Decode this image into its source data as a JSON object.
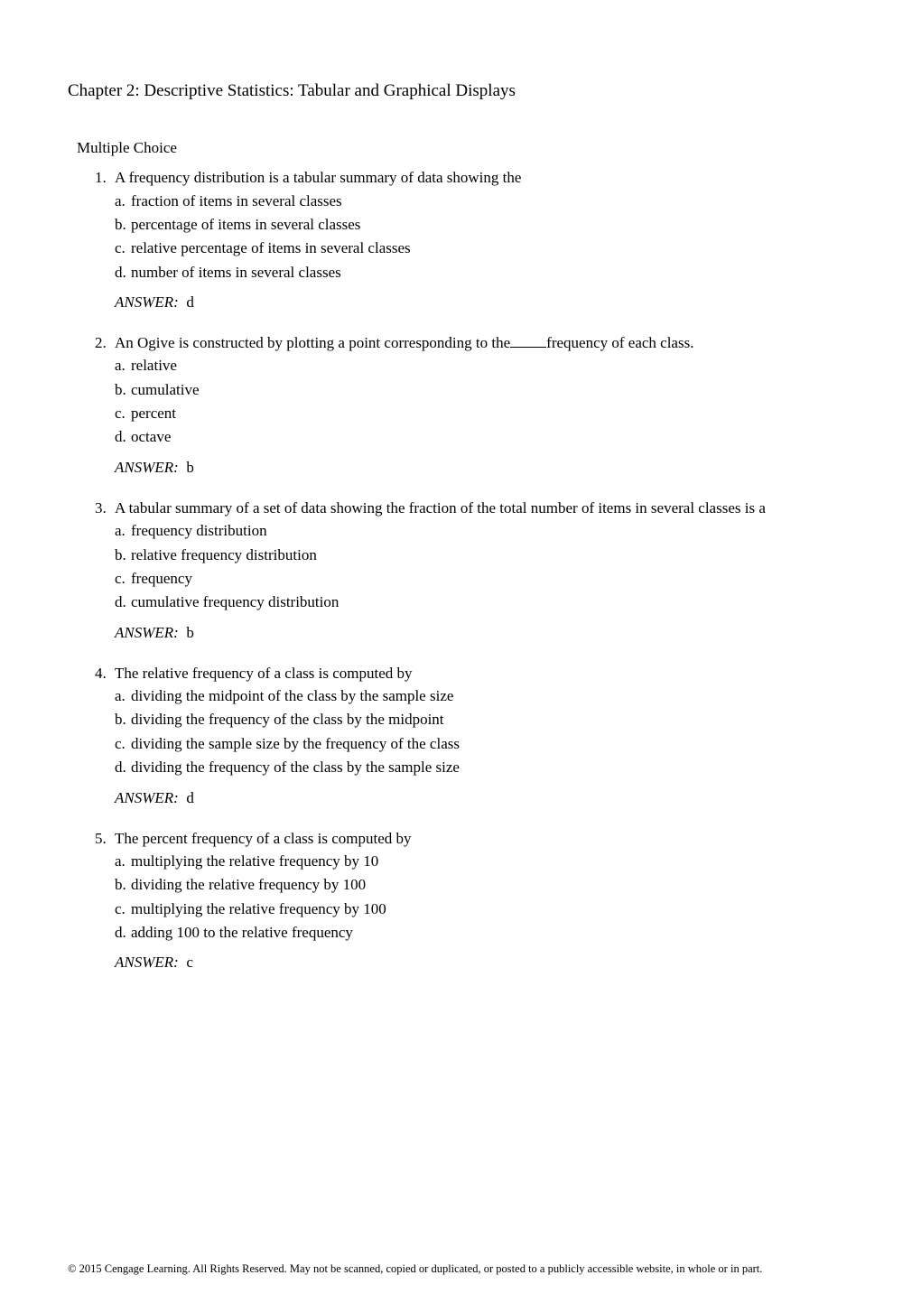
{
  "chapter_title": "Chapter 2:  Descriptive Statistics: Tabular and Graphical Displays",
  "section_heading": "Multiple Choice",
  "questions": [
    {
      "number": "1.",
      "stem": "A frequency distribution is a tabular summary of data showing the",
      "options": [
        {
          "letter": "a.",
          "text": "fraction of items in several classes"
        },
        {
          "letter": "b.",
          "text": "percentage of items in several classes"
        },
        {
          "letter": "c.",
          "text": "relative percentage of items in several classes"
        },
        {
          "letter": "d.",
          "text": "number of items in several classes"
        }
      ],
      "answer_label": "ANSWER:",
      "answer": "d"
    },
    {
      "number": "2.",
      "stem_prefix": "An Ogive is constructed by plotting a point corresponding to the",
      "stem_suffix": "frequency of each class.",
      "has_blank": true,
      "options": [
        {
          "letter": "a.",
          "text": "relative"
        },
        {
          "letter": "b.",
          "text": "cumulative"
        },
        {
          "letter": "c.",
          "text": "percent"
        },
        {
          "letter": "d.",
          "text": "octave"
        }
      ],
      "answer_label": "ANSWER:",
      "answer": "b"
    },
    {
      "number": "3.",
      "stem": "A tabular summary of a set of data showing the fraction of the total number of items in several classes is a",
      "options": [
        {
          "letter": "a.",
          "text": "frequency distribution"
        },
        {
          "letter": "b.",
          "text": "relative frequency distribution"
        },
        {
          "letter": "c.",
          "text": "frequency"
        },
        {
          "letter": "d.",
          "text": "cumulative frequency distribution"
        }
      ],
      "answer_label": "ANSWER:",
      "answer": "b"
    },
    {
      "number": "4.",
      "stem": "The relative frequency of a class is computed by",
      "options": [
        {
          "letter": "a.",
          "text": "dividing the midpoint of the class by the sample size"
        },
        {
          "letter": "b.",
          "text": "dividing the frequency of the class by the midpoint"
        },
        {
          "letter": "c.",
          "text": "dividing the sample size by the frequency of the class"
        },
        {
          "letter": "d.",
          "text": "dividing the frequency of the class by the sample size"
        }
      ],
      "answer_label": "ANSWER:",
      "answer": "d"
    },
    {
      "number": "5.",
      "stem": "The percent frequency of a class is computed by",
      "options": [
        {
          "letter": "a.",
          "text": "multiplying the relative frequency by 10"
        },
        {
          "letter": "b.",
          "text": "dividing the relative frequency by 100"
        },
        {
          "letter": "c.",
          "text": "multiplying the relative frequency by 100"
        },
        {
          "letter": "d.",
          "text": "adding 100 to the relative frequency"
        }
      ],
      "answer_label": "ANSWER:",
      "answer": "c"
    }
  ],
  "footer": "© 2015 Cengage Learning. All Rights Reserved. May not be scanned, copied or duplicated, or posted to a publicly accessible website, in whole or in part."
}
